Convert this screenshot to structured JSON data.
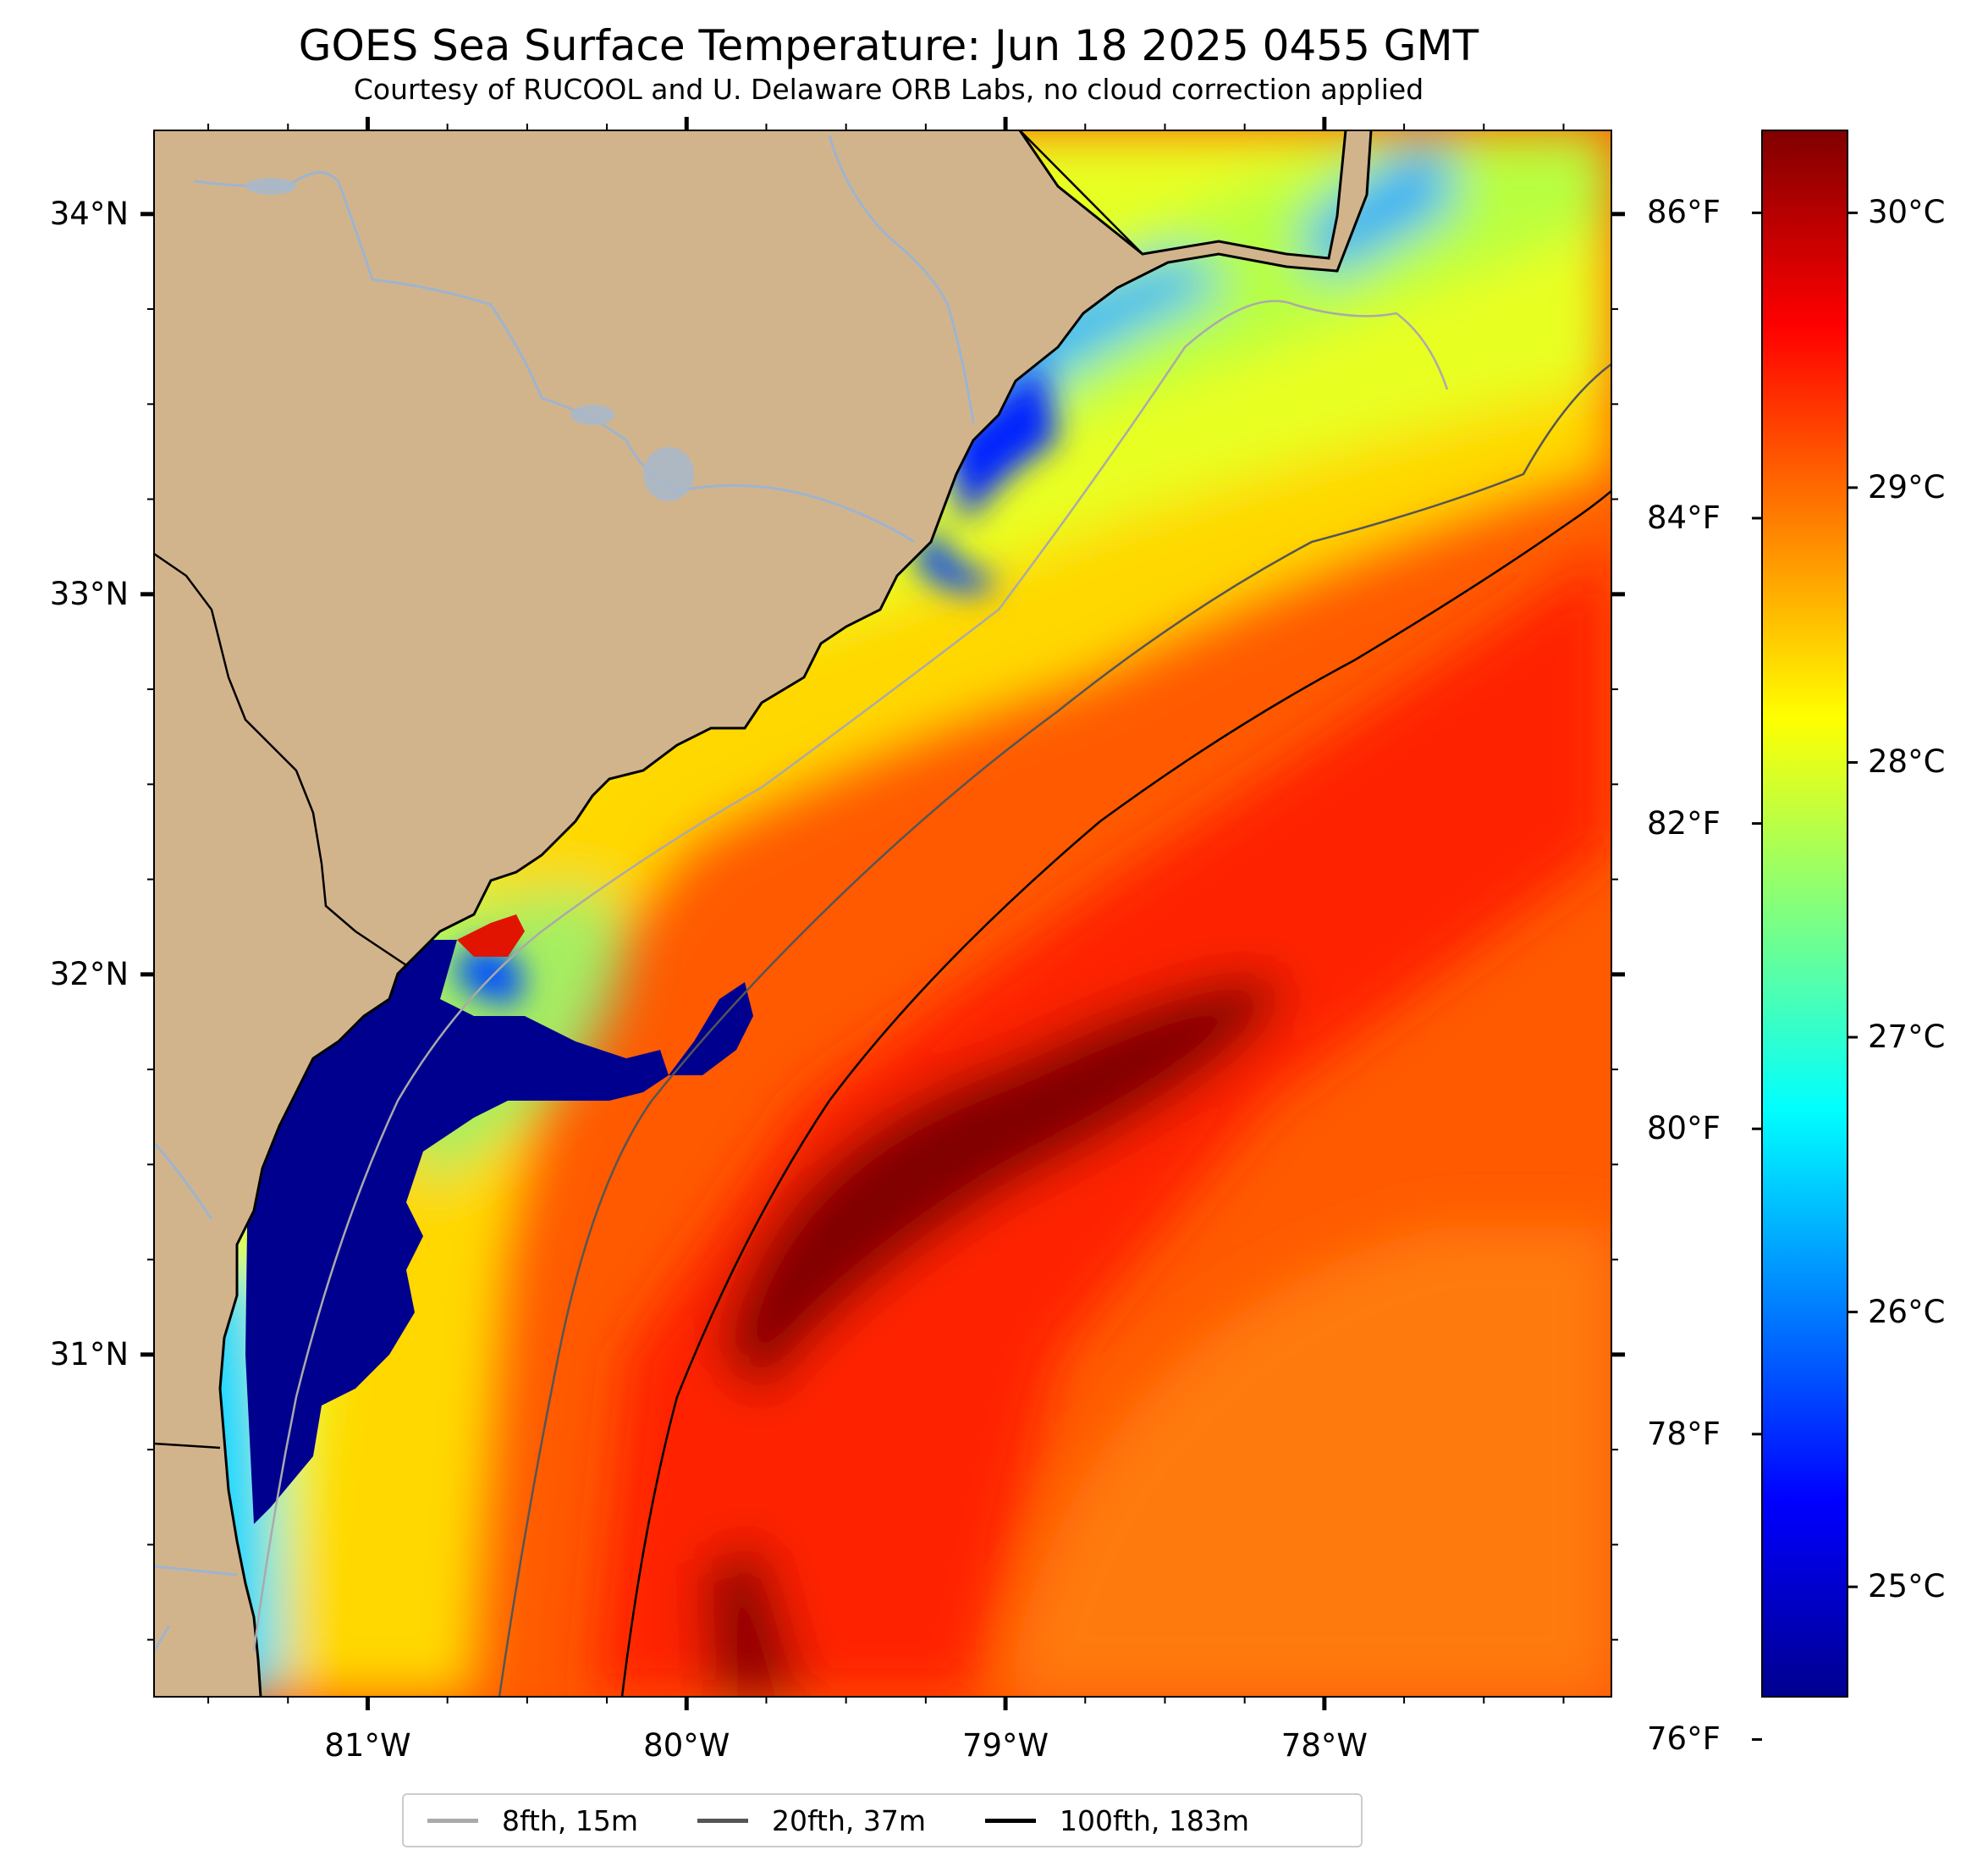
{
  "title": "GOES Sea Surface Temperature: Jun 18 2025 0455 GMT",
  "subtitle": "Courtesy of RUCOOL and U. Delaware ORB Labs, no cloud correction applied",
  "map": {
    "extent": {
      "lon_min": -81.67,
      "lon_max": -77.1,
      "lat_min": 30.1,
      "lat_max": 34.22
    },
    "land_color": "#d2b48c",
    "no_data_color": "#ffffff",
    "river_color": "#9eb4cf",
    "coastline_color": "#000000",
    "lat_ticks": [
      {
        "value": 34,
        "label": "34°N"
      },
      {
        "value": 33,
        "label": "33°N"
      },
      {
        "value": 32,
        "label": "32°N"
      },
      {
        "value": 31,
        "label": "31°N"
      }
    ],
    "lon_ticks": [
      {
        "value": -81,
        "label": "81°W"
      },
      {
        "value": -80,
        "label": "80°W"
      },
      {
        "value": -79,
        "label": "79°W"
      },
      {
        "value": -78,
        "label": "78°W"
      }
    ],
    "sst_regions_c": {
      "nearshore_cold": 24.5,
      "shelf_cool": 26.0,
      "mid_shelf": 27.8,
      "outer_shelf": 28.8,
      "gulf_stream_core": 30.2,
      "offshore_eddy": 29.2
    }
  },
  "colorbar": {
    "colormap": "jet",
    "range_c": [
      24.6,
      30.3
    ],
    "celsius_ticks": [
      {
        "value": 30,
        "label": "30°C"
      },
      {
        "value": 29,
        "label": "29°C"
      },
      {
        "value": 28,
        "label": "28°C"
      },
      {
        "value": 27,
        "label": "27°C"
      },
      {
        "value": 26,
        "label": "26°C"
      },
      {
        "value": 25,
        "label": "25°C"
      }
    ],
    "fahrenheit_ticks": [
      {
        "value": 86,
        "label": "86°F"
      },
      {
        "value": 84,
        "label": "84°F"
      },
      {
        "value": 82,
        "label": "82°F"
      },
      {
        "value": 80,
        "label": "80°F"
      },
      {
        "value": 78,
        "label": "78°F"
      },
      {
        "value": 76,
        "label": "76°F"
      }
    ]
  },
  "legend": [
    {
      "label": "8fth, 15m",
      "color": "#aaaaaa"
    },
    {
      "label": "20fth, 37m",
      "color": "#555555"
    },
    {
      "label": "100fth, 183m",
      "color": "#000000"
    }
  ]
}
